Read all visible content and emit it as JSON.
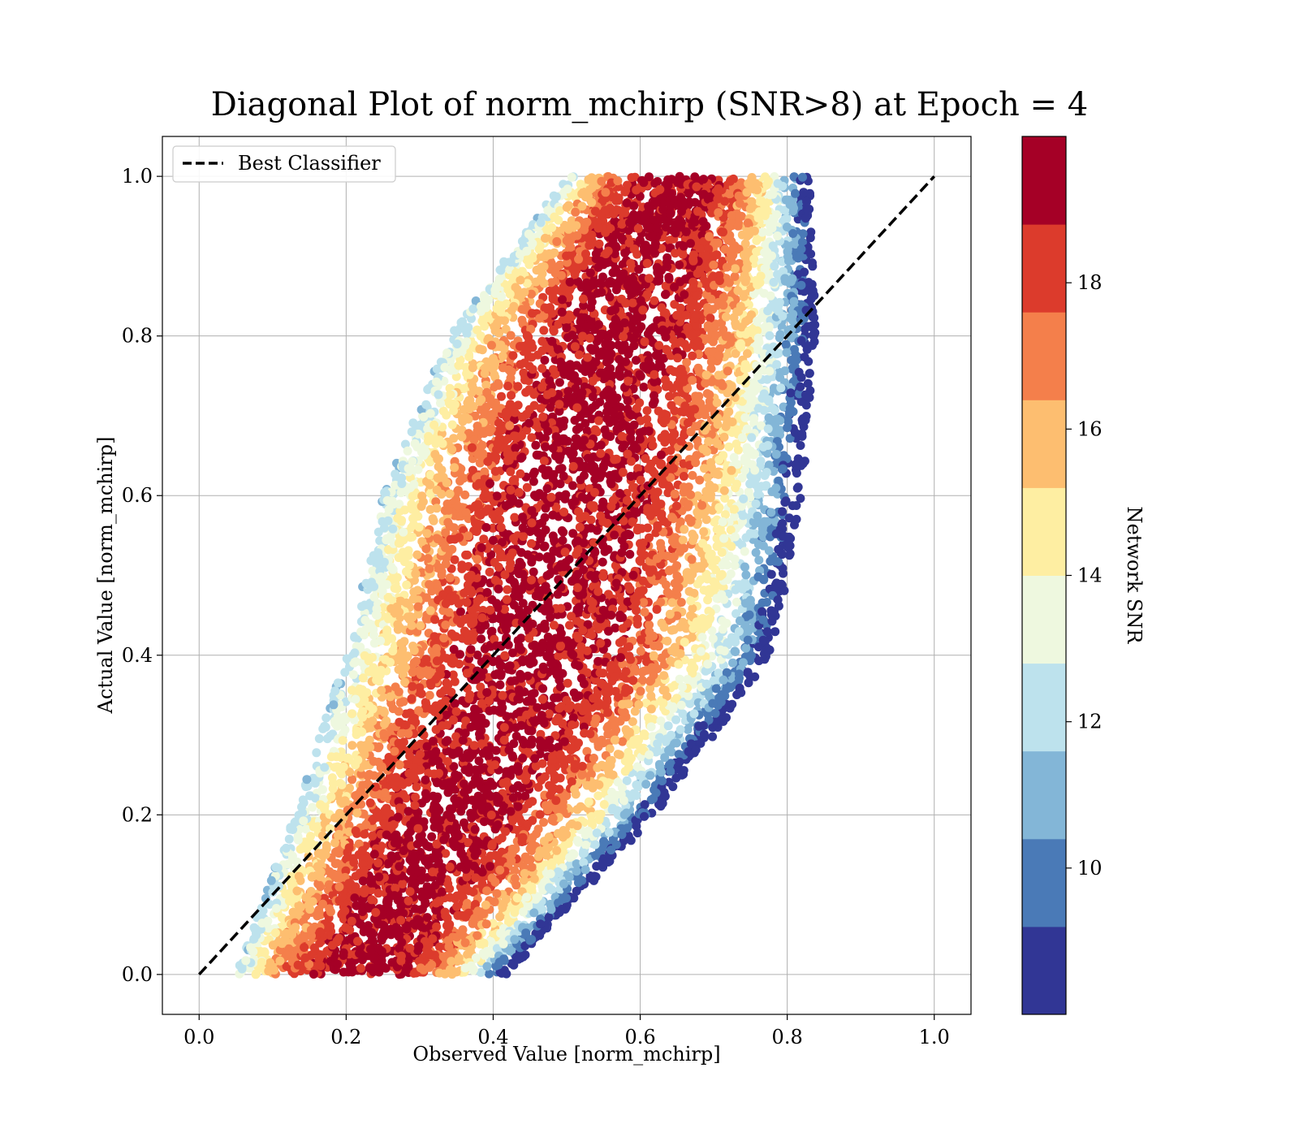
{
  "chart_data": {
    "type": "scatter",
    "title": "Diagonal Plot of norm_mchirp (SNR>8) at Epoch = 4",
    "xlabel": "Observed Value [norm_mchirp]",
    "ylabel": "Actual Value [norm_mchirp]",
    "xlim": [
      -0.05,
      1.05
    ],
    "ylim": [
      -0.05,
      1.05
    ],
    "x_ticks": [
      0.0,
      0.2,
      0.4,
      0.6,
      0.8,
      1.0
    ],
    "y_ticks": [
      0.0,
      0.2,
      0.4,
      0.6,
      0.8,
      1.0
    ],
    "x_tick_labels": [
      "0.0",
      "0.2",
      "0.4",
      "0.6",
      "0.8",
      "1.0"
    ],
    "y_tick_labels": [
      "0.0",
      "0.2",
      "0.4",
      "0.6",
      "0.8",
      "1.0"
    ],
    "grid": true,
    "legend": {
      "position": "top-left",
      "entries": [
        {
          "label": "Best Classifier",
          "style": "dashed",
          "color": "#000000"
        }
      ]
    },
    "reference_line": {
      "name": "Best Classifier",
      "x": [
        0.0,
        1.0
      ],
      "y": [
        0.0,
        1.0
      ],
      "style": "dashed",
      "color": "#000000"
    },
    "point_cloud": {
      "description": "dense scatter band around the diagonal; higher SNR near diagonal, lower SNR at outer edges",
      "x_range": [
        0.05,
        0.85
      ],
      "y_range": [
        0.0,
        1.0
      ],
      "band_x_min_by_y": [
        [
          0.0,
          0.05
        ],
        [
          0.2,
          0.13
        ],
        [
          0.4,
          0.2
        ],
        [
          0.6,
          0.25
        ],
        [
          0.8,
          0.34
        ],
        [
          1.0,
          0.5
        ]
      ],
      "band_x_max_by_y": [
        [
          0.0,
          0.42
        ],
        [
          0.2,
          0.62
        ],
        [
          0.4,
          0.78
        ],
        [
          0.6,
          0.82
        ],
        [
          0.8,
          0.84
        ],
        [
          1.0,
          0.83
        ]
      ],
      "snr_range": [
        8,
        20
      ]
    },
    "colorbar": {
      "label": "Network SNR",
      "range": [
        8,
        20
      ],
      "ticks": [
        10,
        12,
        14,
        16,
        18
      ],
      "tick_labels": [
        "10",
        "12",
        "14",
        "16",
        "18"
      ],
      "levels": [
        {
          "from": 8,
          "to": 9.2,
          "color": "#313695"
        },
        {
          "from": 9.2,
          "to": 10.4,
          "color": "#4a7ab7"
        },
        {
          "from": 10.4,
          "to": 11.6,
          "color": "#83b6d7"
        },
        {
          "from": 11.6,
          "to": 12.8,
          "color": "#bde2ed"
        },
        {
          "from": 12.8,
          "to": 14.0,
          "color": "#eef8df"
        },
        {
          "from": 14.0,
          "to": 15.2,
          "color": "#feeea2"
        },
        {
          "from": 15.2,
          "to": 16.4,
          "color": "#fdbe70"
        },
        {
          "from": 16.4,
          "to": 17.6,
          "color": "#f47f4b"
        },
        {
          "from": 17.6,
          "to": 18.8,
          "color": "#dc3b2c"
        },
        {
          "from": 18.8,
          "to": 20,
          "color": "#a50026"
        }
      ]
    }
  }
}
